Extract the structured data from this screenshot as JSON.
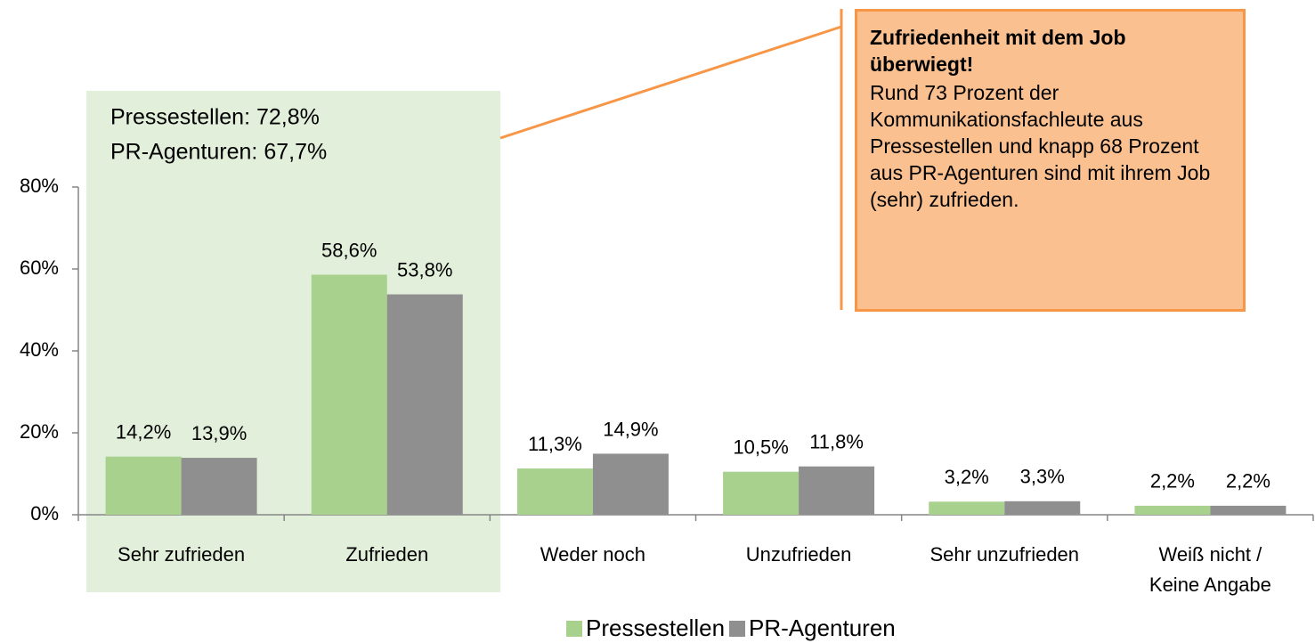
{
  "chart_data": {
    "type": "bar",
    "categories": [
      "Sehr zufrieden",
      "Zufrieden",
      "Weder noch",
      "Unzufrieden",
      "Sehr unzufrieden",
      "Weiß nicht / Keine Angabe"
    ],
    "series": [
      {
        "name": "Pressestellen",
        "color": "#a9d18e",
        "values": [
          14.2,
          58.6,
          11.3,
          10.5,
          3.2,
          2.2
        ],
        "value_labels": [
          "14,2%",
          "58,6%",
          "11,3%",
          "10,5%",
          "3,2%",
          "2,2%"
        ]
      },
      {
        "name": "PR-Agenturen",
        "color": "#8f8f8f",
        "values": [
          13.9,
          53.8,
          14.9,
          11.8,
          3.3,
          2.2
        ],
        "value_labels": [
          "13,9%",
          "53,8%",
          "14,9%",
          "11,8%",
          "3,3%",
          "2,2%"
        ]
      }
    ],
    "ylim": [
      0,
      80
    ],
    "yticks": [
      {
        "value": 0,
        "label": "0%"
      },
      {
        "value": 20,
        "label": "20%"
      },
      {
        "value": 40,
        "label": "40%"
      },
      {
        "value": 60,
        "label": "60%"
      },
      {
        "value": 80,
        "label": "80%"
      }
    ],
    "annotations": [
      "Pressestellen: 72,8%",
      "PR-Agenturen: 67,7%"
    ],
    "callout": {
      "title": "Zufriedenheit mit dem Job überwiegt!",
      "text": "Rund 73 Prozent der Kommunikationsfachleute aus Pressestellen und knapp 68 Prozent aus PR-Agenturen sind mit ihrem Job (sehr) zufrieden."
    },
    "legend": "bottom"
  }
}
